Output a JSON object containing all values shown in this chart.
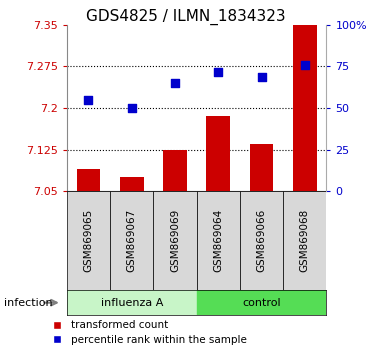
{
  "title": "GDS4825 / ILMN_1834323",
  "samples": [
    "GSM869065",
    "GSM869067",
    "GSM869069",
    "GSM869064",
    "GSM869066",
    "GSM869068"
  ],
  "bar_values": [
    7.09,
    7.075,
    7.125,
    7.185,
    7.135,
    7.35
  ],
  "scatter_values": [
    7.215,
    7.2,
    7.245,
    7.265,
    7.255,
    7.278
  ],
  "bar_color": "#cc0000",
  "scatter_color": "#0000cc",
  "ylim_left": [
    7.05,
    7.35
  ],
  "ylim_right": [
    0,
    100
  ],
  "yticks_left": [
    7.05,
    7.125,
    7.2,
    7.275,
    7.35
  ],
  "ytick_labels_left": [
    "7.05",
    "7.125",
    "7.2",
    "7.275",
    "7.35"
  ],
  "yticks_right": [
    0,
    25,
    50,
    75,
    100
  ],
  "ytick_labels_right": [
    "0",
    "25",
    "50",
    "75",
    "100%"
  ],
  "hlines": [
    7.125,
    7.2,
    7.275
  ],
  "infection_label": "infection",
  "bar_width": 0.55,
  "group1_color": "#c8f5c8",
  "group2_color": "#55dd55",
  "xticklabel_fontsize": 7.5,
  "left_tick_color": "#cc0000",
  "right_tick_color": "#0000cc",
  "title_fontsize": 11,
  "scatter_size": 28
}
